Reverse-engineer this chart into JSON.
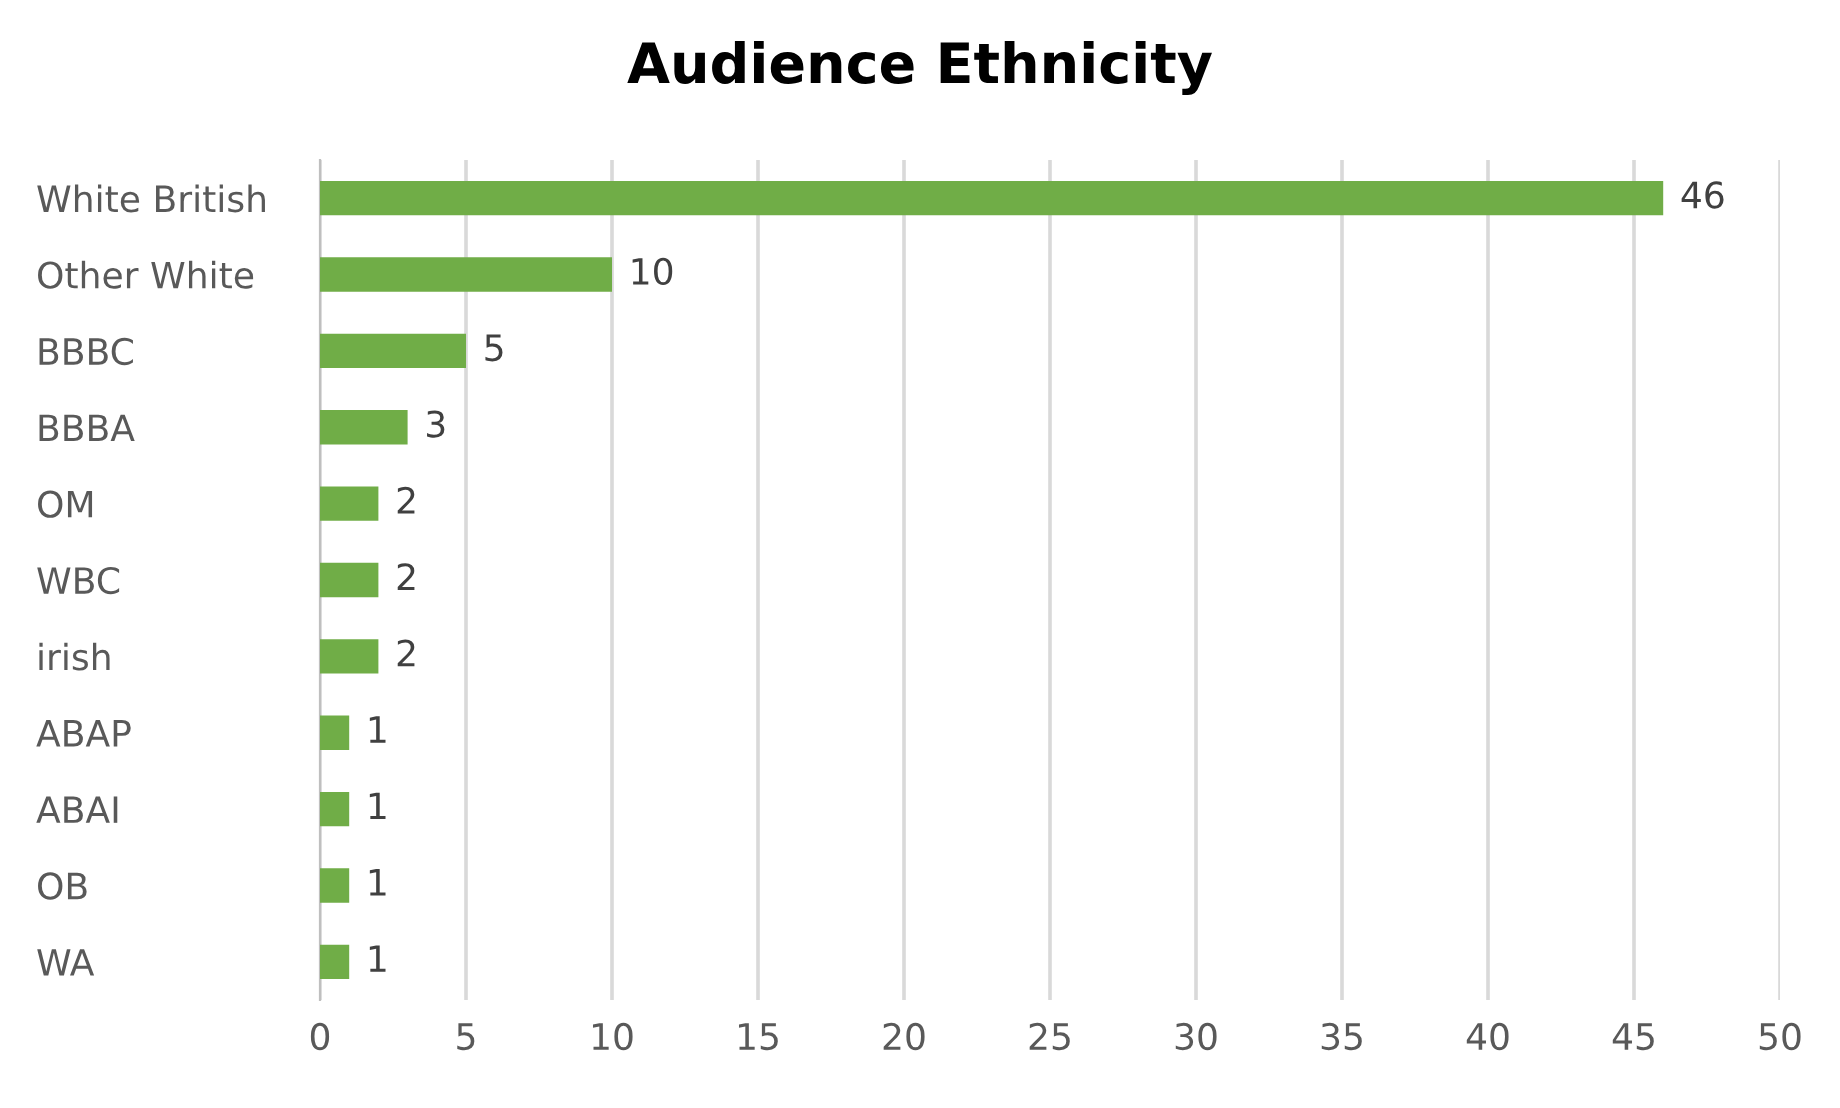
{
  "chart_data": {
    "type": "bar",
    "orientation": "horizontal",
    "title": "Audience Ethnicity",
    "categories": [
      "White British",
      "Other White",
      "BBBC",
      "BBBA",
      "OM",
      "WBC",
      "irish",
      "ABAP",
      "ABAI",
      "OB",
      "WA"
    ],
    "values": [
      46,
      10,
      5,
      3,
      2,
      2,
      2,
      1,
      1,
      1,
      1
    ],
    "color": "#70ad47",
    "xlim": [
      0,
      50
    ],
    "xticks": [
      0,
      5,
      10,
      15,
      20,
      25,
      30,
      35,
      40,
      45,
      50
    ],
    "grid": "x",
    "data_labels": true,
    "legend": false
  }
}
